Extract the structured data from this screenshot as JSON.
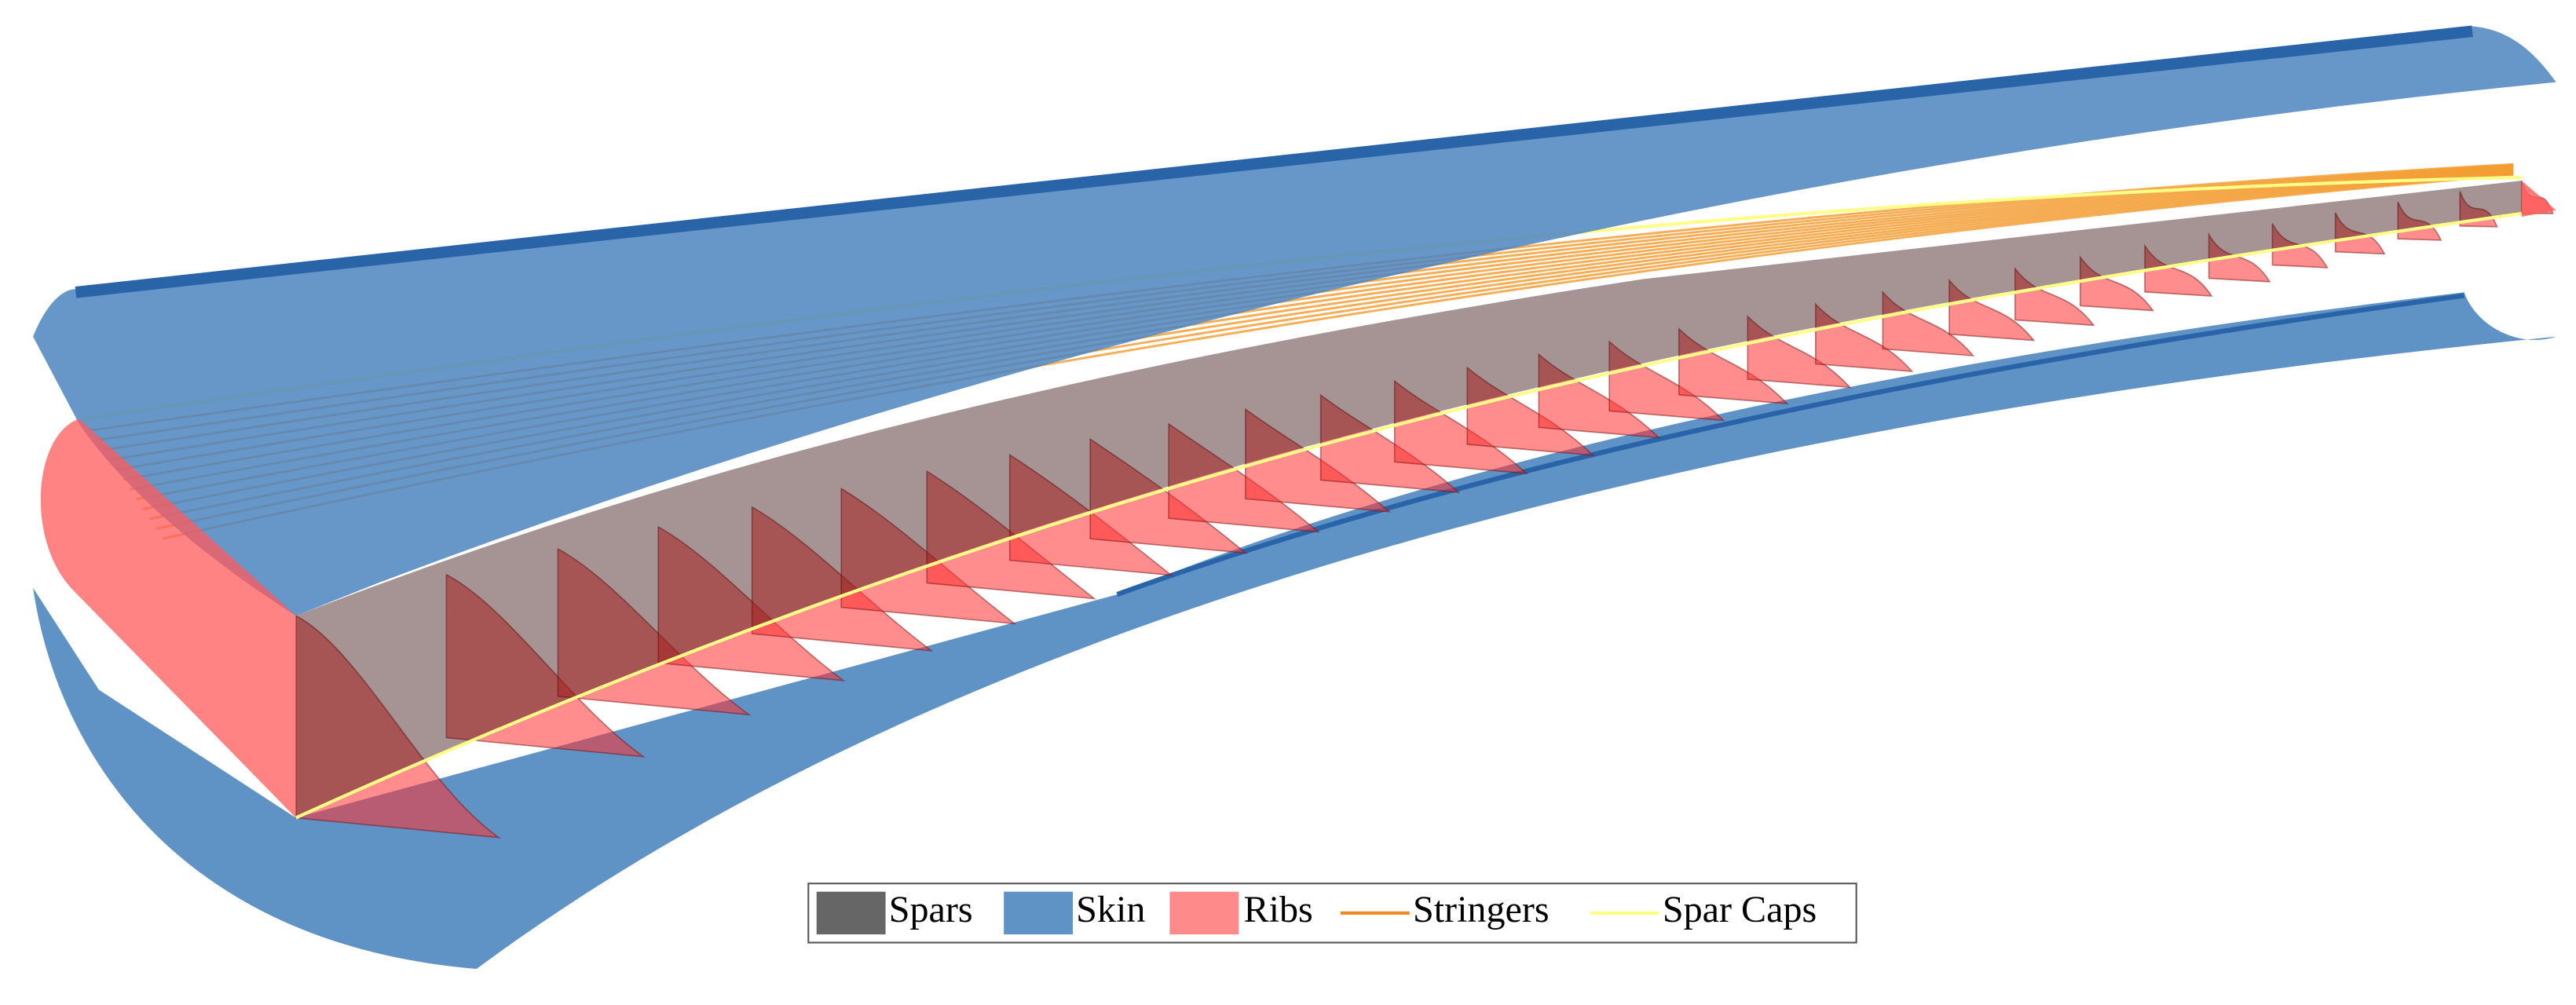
{
  "legend": {
    "items": [
      "Spars",
      "Skin",
      "Ribs",
      "Stringers",
      "Spar Caps"
    ]
  }
}
